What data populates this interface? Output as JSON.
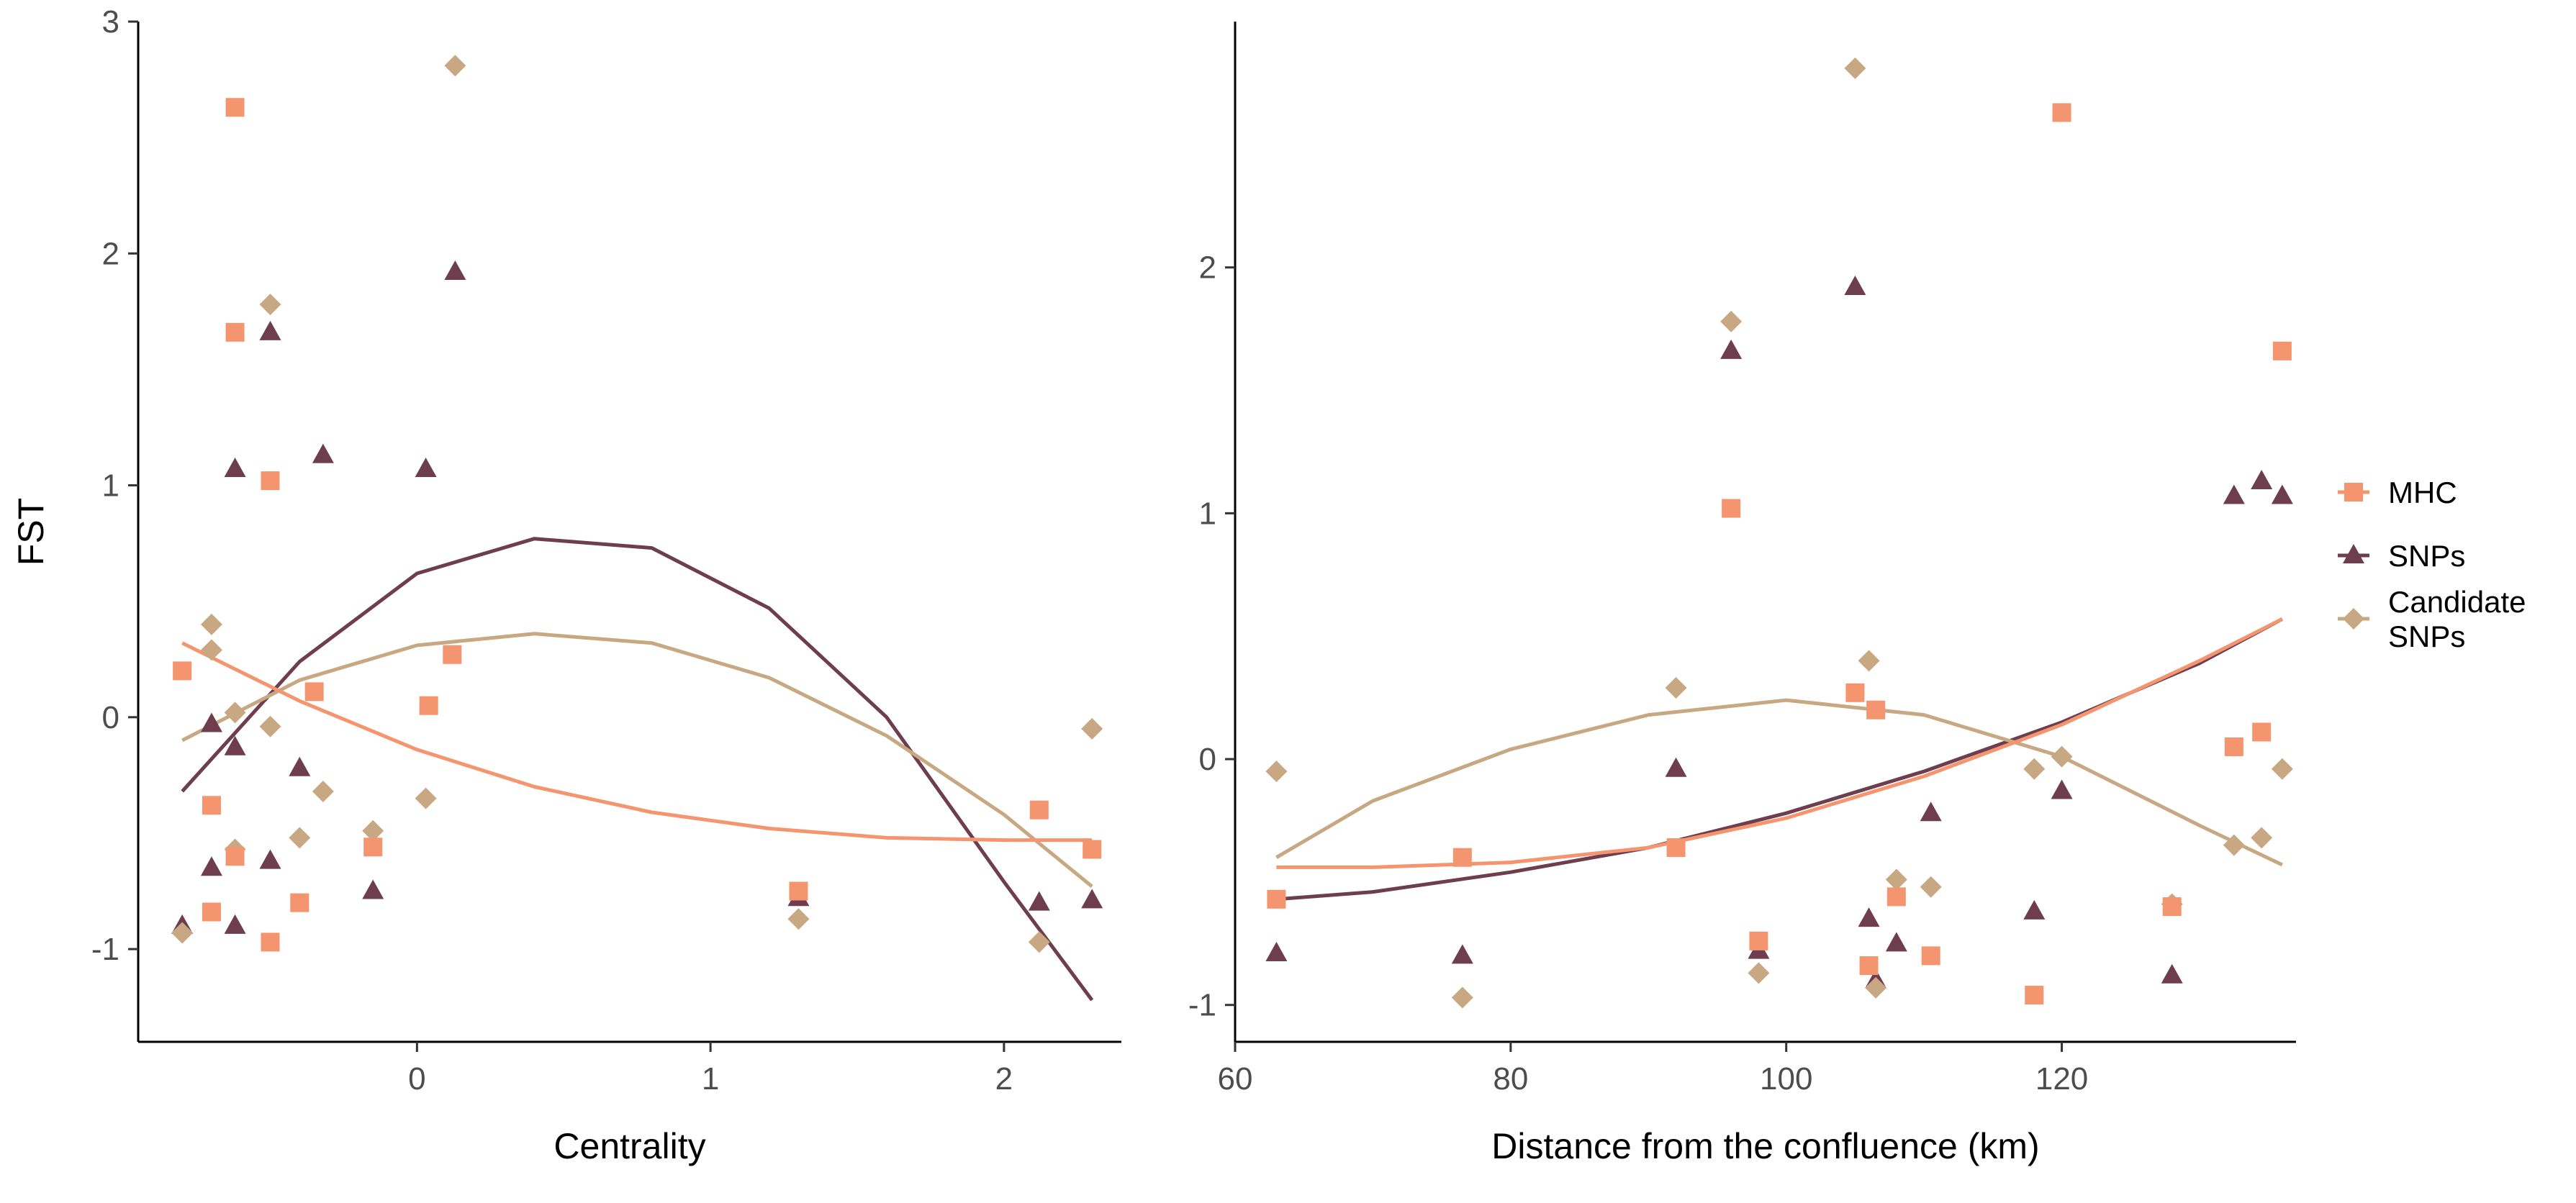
{
  "chart_data": [
    {
      "type": "scatter",
      "panel": "left",
      "xlabel": "Centrality",
      "ylabel": "FST",
      "xlim": [
        -0.95,
        2.4
      ],
      "ylim": [
        -1.4,
        3.0
      ],
      "xticks": [
        0,
        1,
        2
      ],
      "yticks": [
        -1,
        0,
        1,
        2,
        3
      ],
      "series": [
        {
          "name": "MHC",
          "color": "#F4956F",
          "marker": "square",
          "x": [
            -0.8,
            -0.62,
            -0.62,
            -0.7,
            -0.7,
            -0.62,
            -0.5,
            -0.5,
            -0.4,
            -0.35,
            -0.15,
            0.04,
            0.12,
            1.3,
            2.12,
            2.3
          ],
          "y": [
            0.2,
            2.63,
            1.66,
            -0.38,
            -0.84,
            -0.6,
            1.02,
            -0.97,
            -0.8,
            0.11,
            -0.56,
            0.05,
            0.27,
            -0.75,
            -0.4,
            -0.57
          ],
          "fit": {
            "x": [
              -0.8,
              -0.4,
              0.0,
              0.4,
              0.8,
              1.2,
              1.6,
              2.0,
              2.3
            ],
            "y": [
              0.32,
              0.07,
              -0.14,
              -0.3,
              -0.41,
              -0.48,
              -0.52,
              -0.53,
              -0.53
            ]
          }
        },
        {
          "name": "SNPs",
          "color": "#6E3E4F",
          "marker": "triangle",
          "x": [
            -0.8,
            -0.7,
            -0.7,
            -0.62,
            -0.62,
            -0.62,
            -0.5,
            -0.5,
            -0.4,
            -0.32,
            -0.15,
            0.03,
            0.13,
            1.3,
            2.12,
            2.3
          ],
          "y": [
            -0.9,
            -0.03,
            -0.65,
            1.07,
            -0.13,
            -0.9,
            1.66,
            -0.62,
            -0.22,
            1.13,
            -0.75,
            1.07,
            1.92,
            -0.78,
            -0.8,
            -0.79
          ],
          "fit": {
            "x": [
              -0.8,
              -0.4,
              0.0,
              0.4,
              0.8,
              1.2,
              1.6,
              2.0,
              2.3
            ],
            "y": [
              -0.32,
              0.24,
              0.62,
              0.77,
              0.73,
              0.47,
              0.0,
              -0.71,
              -1.22
            ]
          }
        },
        {
          "name": "Candidate SNPs",
          "color": "#C8A882",
          "marker": "diamond",
          "x": [
            -0.8,
            -0.7,
            -0.7,
            -0.62,
            -0.62,
            -0.5,
            -0.5,
            -0.4,
            -0.32,
            -0.15,
            0.03,
            0.13,
            1.3,
            2.12,
            2.3
          ],
          "y": [
            -0.93,
            0.4,
            0.29,
            0.02,
            -0.57,
            1.78,
            -0.04,
            -0.52,
            -0.32,
            -0.49,
            -0.35,
            2.81,
            -0.87,
            -0.97,
            -0.05
          ],
          "fit": {
            "x": [
              -0.8,
              -0.4,
              0.0,
              0.4,
              0.8,
              1.2,
              1.6,
              2.0,
              2.3
            ],
            "y": [
              -0.1,
              0.16,
              0.31,
              0.36,
              0.32,
              0.17,
              -0.08,
              -0.42,
              -0.73
            ]
          }
        }
      ]
    },
    {
      "type": "scatter",
      "panel": "right",
      "xlabel": "Distance from the confluence (km)",
      "ylabel": "",
      "xlim": [
        60,
        137
      ],
      "ylim": [
        -1.15,
        3.0
      ],
      "xticks": [
        60,
        80,
        100,
        120
      ],
      "yticks": [
        -1,
        0,
        1,
        2
      ],
      "series": [
        {
          "name": "MHC",
          "color": "#F4956F",
          "marker": "square",
          "x": [
            63,
            76.5,
            92,
            96,
            98,
            105,
            106,
            106.5,
            108,
            110.5,
            118,
            120,
            128,
            132.5,
            134.5,
            136
          ],
          "y": [
            -0.57,
            -0.4,
            -0.36,
            1.02,
            -0.74,
            0.27,
            -0.84,
            0.2,
            -0.56,
            -0.8,
            -0.96,
            2.63,
            -0.6,
            0.05,
            0.11,
            1.66
          ],
          "fit": {
            "x": [
              63,
              70,
              80,
              90,
              100,
              110,
              120,
              130,
              136
            ],
            "y": [
              -0.44,
              -0.44,
              -0.42,
              -0.36,
              -0.24,
              -0.07,
              0.14,
              0.4,
              0.57
            ]
          }
        },
        {
          "name": "SNPs",
          "color": "#6E3E4F",
          "marker": "triangle",
          "x": [
            63,
            76.5,
            92,
            96,
            98,
            105,
            106,
            106.5,
            108,
            110.5,
            118,
            120,
            128,
            132.5,
            134.5,
            136
          ],
          "y": [
            -0.79,
            -0.8,
            -0.04,
            1.66,
            -0.78,
            1.92,
            -0.65,
            -0.9,
            -0.75,
            -0.22,
            -0.62,
            -0.13,
            -0.88,
            1.07,
            1.13,
            1.07
          ],
          "fit": {
            "x": [
              63,
              70,
              80,
              90,
              100,
              110,
              120,
              130,
              136
            ],
            "y": [
              -0.57,
              -0.54,
              -0.46,
              -0.36,
              -0.22,
              -0.05,
              0.15,
              0.39,
              0.57
            ]
          }
        },
        {
          "name": "Candidate SNPs",
          "color": "#C8A882",
          "marker": "diamond",
          "x": [
            63,
            76.5,
            92,
            96,
            98,
            105,
            106,
            106.5,
            108,
            110.5,
            118,
            120,
            128,
            132.5,
            134.5,
            136
          ],
          "y": [
            -0.05,
            -0.97,
            0.29,
            1.78,
            -0.87,
            2.81,
            0.4,
            -0.93,
            -0.49,
            -0.52,
            -0.04,
            0.01,
            -0.59,
            -0.35,
            -0.32,
            -0.04
          ],
          "fit": {
            "x": [
              63,
              70,
              80,
              90,
              100,
              110,
              120,
              130,
              136
            ],
            "y": [
              -0.4,
              -0.17,
              0.04,
              0.18,
              0.24,
              0.18,
              0.01,
              -0.27,
              -0.43
            ]
          }
        }
      ]
    }
  ],
  "legend": {
    "items": [
      {
        "label_lines": [
          "MHC"
        ],
        "color": "#F4956F",
        "marker": "square"
      },
      {
        "label_lines": [
          "SNPs"
        ],
        "color": "#6E3E4F",
        "marker": "triangle"
      },
      {
        "label_lines": [
          "Candidate",
          "SNPs"
        ],
        "color": "#C8A882",
        "marker": "diamond"
      }
    ]
  }
}
